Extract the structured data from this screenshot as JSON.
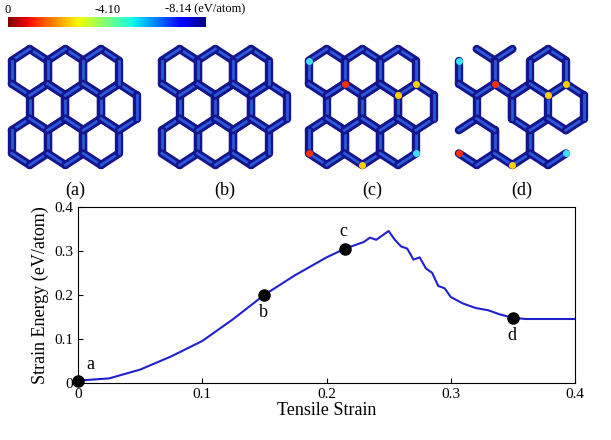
{
  "color_scale": {
    "range": [
      0,
      -8.14
    ],
    "ticks": [
      0,
      {
        "value": -4.1,
        "label": "-4.10"
      },
      {
        "value": -8.14,
        "label": "-8.14 (eV/atom)"
      }
    ]
  },
  "panel_labels": [
    "(a)",
    "(b)",
    "(c)",
    "(d)"
  ],
  "chart_data": {
    "type": "line",
    "x_label": "Tensile Strain",
    "y_label": "Strain Energy (eV/atom)",
    "x": [
      0,
      0.025,
      0.05,
      0.075,
      0.1,
      0.125,
      0.15,
      0.175,
      0.2,
      0.215,
      0.23,
      0.235,
      0.24,
      0.245,
      0.25,
      0.255,
      0.26,
      0.265,
      0.27,
      0.275,
      0.28,
      0.285,
      0.29,
      0.295,
      0.3,
      0.31,
      0.32,
      0.33,
      0.34,
      0.35,
      0.36,
      0.38,
      0.4
    ],
    "values": [
      0.005,
      0.01,
      0.03,
      0.06,
      0.095,
      0.145,
      0.2,
      0.245,
      0.285,
      0.305,
      0.32,
      0.33,
      0.325,
      0.335,
      0.345,
      0.325,
      0.31,
      0.305,
      0.28,
      0.285,
      0.26,
      0.25,
      0.22,
      0.215,
      0.195,
      0.18,
      0.17,
      0.165,
      0.155,
      0.148,
      0.145,
      0.145,
      0.145
    ],
    "color": "#2020d0",
    "xlim": [
      0,
      0.4
    ],
    "xticks": [
      0,
      0.1,
      0.2,
      0.3,
      0.4
    ],
    "ylim": [
      0,
      0.4
    ],
    "yticks": [
      0,
      0.1,
      0.2,
      0.3,
      0.4
    ],
    "annotations": [
      {
        "text": "a",
        "x": 0,
        "y": 0.005
      },
      {
        "text": "b",
        "x": 0.15,
        "y": 0.2
      },
      {
        "text": "c",
        "x": 0.215,
        "y": 0.305
      },
      {
        "text": "d",
        "x": 0.35,
        "y": 0.148
      }
    ]
  }
}
